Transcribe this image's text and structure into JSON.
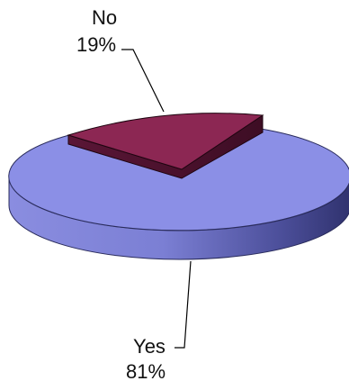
{
  "chart_data": {
    "type": "pie",
    "style": "3d-exploded",
    "slices": [
      {
        "name": "Yes",
        "value": 81,
        "label": "81%",
        "color": "#8b8fe6"
      },
      {
        "name": "No",
        "value": 19,
        "label": "19%",
        "color": "#8c2753"
      }
    ]
  }
}
